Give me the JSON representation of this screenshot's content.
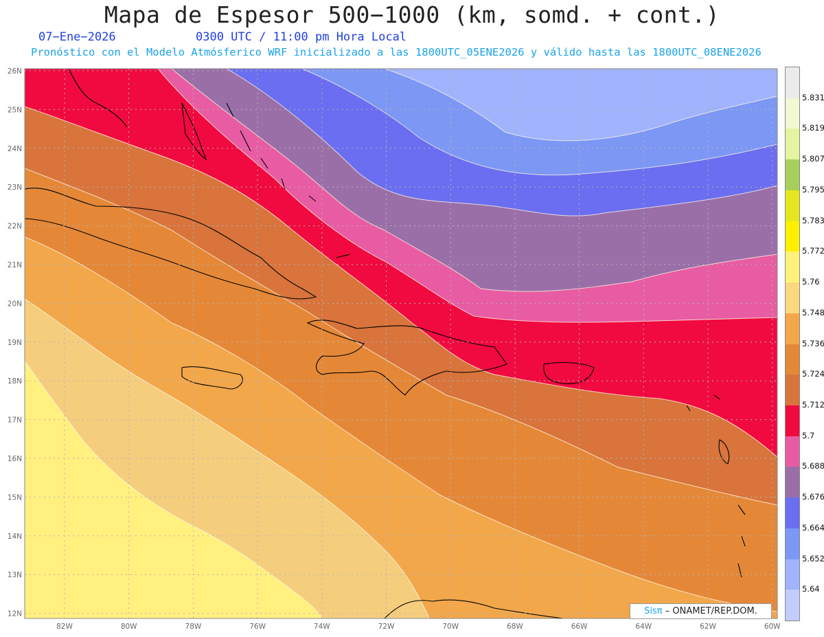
{
  "header": {
    "title": "Mapa de Espesor 500−1000 (km, somd. + cont.)",
    "date": "07−Ene−2026",
    "time": "0300 UTC / 11:00 pm Hora Local",
    "subtitle": "Pronóstico con el Modelo Atmósferico WRF inicializado a las 1800UTC_05ENE2026 y válido hasta las  1800UTC_08ENE2026"
  },
  "credit": {
    "brand": "Sisπ",
    "text": "– ONAMET/REP.DOM."
  },
  "axes": {
    "lat_labels": [
      "26N",
      "25N",
      "24N",
      "23N",
      "22N",
      "21N",
      "20N",
      "19N",
      "18N",
      "17N",
      "16N",
      "15N",
      "14N",
      "13N",
      "12N"
    ],
    "lon_labels": [
      "82W",
      "80W",
      "78W",
      "76W",
      "74W",
      "72W",
      "70W",
      "68W",
      "66W",
      "64W",
      "62W",
      "60W"
    ]
  },
  "colorbar": {
    "colors": [
      "#ebebeb",
      "#f3f8d5",
      "#e4f4a0",
      "#a8cf5c",
      "#e6e61e",
      "#fff000",
      "#fff27a",
      "#fbd77f",
      "#f2a74b",
      "#e48838",
      "#d8743c",
      "#f00a40",
      "#e85ca3",
      "#9a6fa8",
      "#6b6ef0",
      "#7d97f5",
      "#a0b3fc",
      "#c2cdfe"
    ],
    "labels": [
      "5.831",
      "5.819",
      "5.807",
      "5.795",
      "5.783",
      "5.772",
      "5.76",
      "5.748",
      "5.736",
      "5.724",
      "5.712",
      "5.7",
      "5.688",
      "5.676",
      "5.664",
      "5.652",
      "5.64"
    ]
  },
  "bands": {
    "yellow": "#fff080",
    "pale_orange": "#f4cd7d",
    "light_orange": "#f2a74b",
    "orange": "#e48838",
    "dark_orange": "#d8743c",
    "red": "#f00a40",
    "pink": "#e85ca3",
    "purple": "#9a6fa8",
    "blue": "#6b6ef0",
    "medium_blue": "#7d97f5",
    "light_blue": "#a0b3fc"
  }
}
